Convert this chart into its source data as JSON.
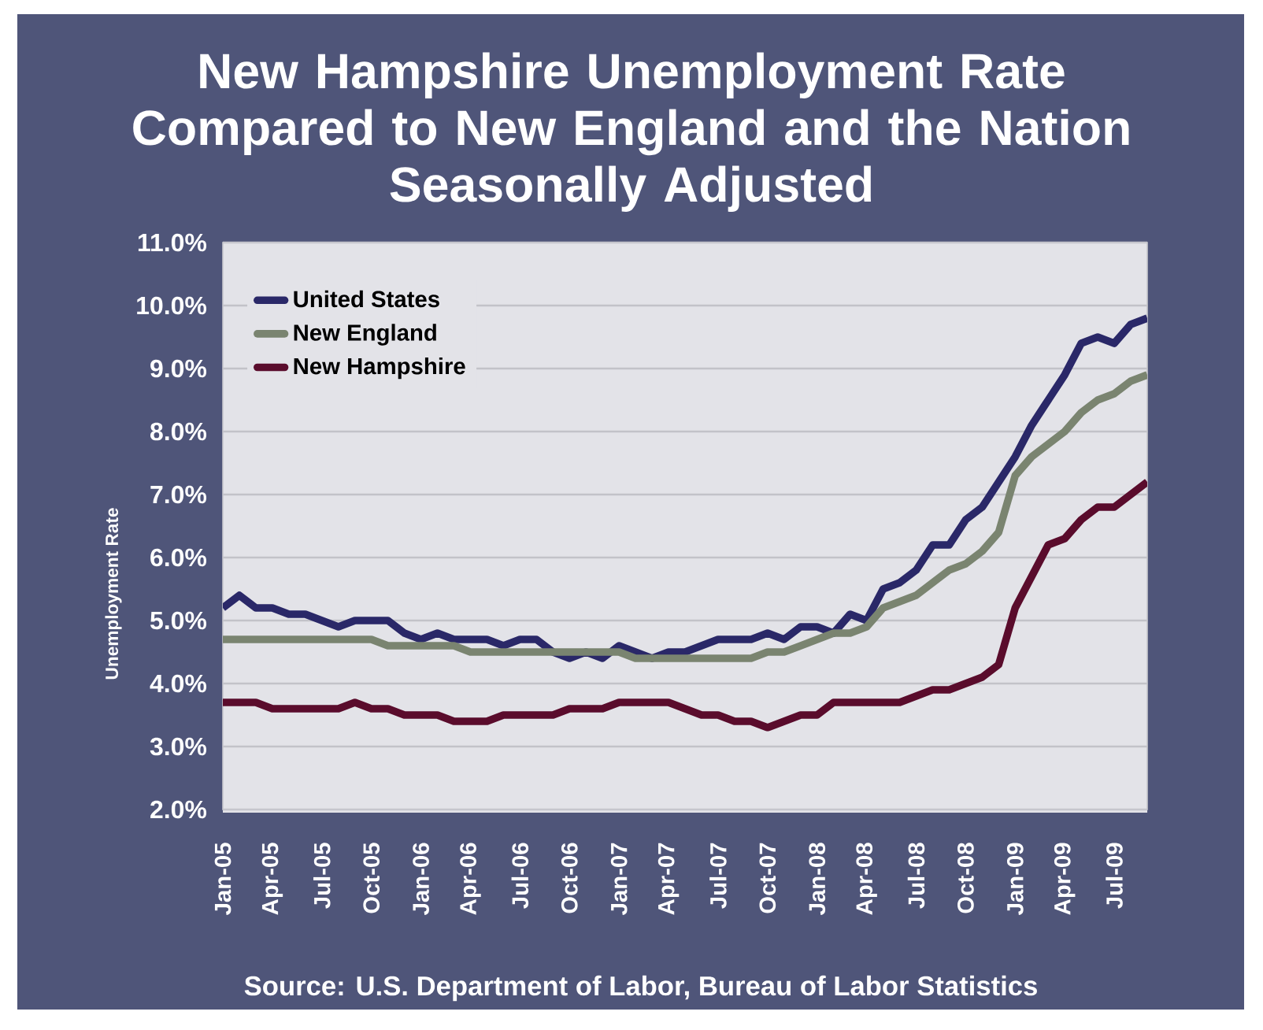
{
  "chart_data": {
    "type": "line",
    "title": "New Hampshire Unemployment Rate Compared to New England and the Nation",
    "subtitle": "Seasonally Adjusted",
    "ylabel": "Unemployment Rate",
    "categories": [
      "Jan-05",
      null,
      null,
      "Apr-05",
      null,
      null,
      "Jul-05",
      null,
      null,
      "Oct-05",
      null,
      null,
      "Jan-06",
      null,
      null,
      "Apr-06",
      null,
      null,
      "Jul-06",
      null,
      null,
      "Oct-06",
      null,
      null,
      "Jan-07",
      null,
      null,
      "Apr-07",
      null,
      null,
      "Jul-07",
      null,
      null,
      "Oct-07",
      null,
      null,
      "Jan-08",
      null,
      null,
      "Apr-08",
      null,
      null,
      "Jul-08",
      null,
      null,
      "Oct-08",
      null,
      null,
      "Jan-09",
      null,
      null,
      "Apr-09",
      null,
      null,
      "Jul-09",
      null,
      null
    ],
    "series": [
      {
        "name": "United States",
        "color": "#2a2868",
        "values": [
          5.2,
          5.4,
          5.2,
          5.2,
          5.1,
          5.1,
          5.0,
          4.9,
          5.0,
          5.0,
          5.0,
          4.8,
          4.7,
          4.8,
          4.7,
          4.7,
          4.7,
          4.6,
          4.7,
          4.7,
          4.5,
          4.4,
          4.5,
          4.4,
          4.6,
          4.5,
          4.4,
          4.5,
          4.5,
          4.6,
          4.7,
          4.7,
          4.7,
          4.8,
          4.7,
          4.9,
          4.9,
          4.8,
          5.1,
          5.0,
          5.5,
          5.6,
          5.8,
          6.2,
          6.2,
          6.6,
          6.8,
          7.2,
          7.6,
          8.1,
          8.5,
          8.9,
          9.4,
          9.5,
          9.4,
          9.7,
          9.8
        ]
      },
      {
        "name": "New England",
        "color": "#7a8470",
        "values": [
          4.7,
          4.7,
          4.7,
          4.7,
          4.7,
          4.7,
          4.7,
          4.7,
          4.7,
          4.7,
          4.6,
          4.6,
          4.6,
          4.6,
          4.6,
          4.5,
          4.5,
          4.5,
          4.5,
          4.5,
          4.5,
          4.5,
          4.5,
          4.5,
          4.5,
          4.4,
          4.4,
          4.4,
          4.4,
          4.4,
          4.4,
          4.4,
          4.4,
          4.5,
          4.5,
          4.6,
          4.7,
          4.8,
          4.8,
          4.9,
          5.2,
          5.3,
          5.4,
          5.6,
          5.8,
          5.9,
          6.1,
          6.4,
          7.3,
          7.6,
          7.8,
          8.0,
          8.3,
          8.5,
          8.6,
          8.8,
          8.9
        ]
      },
      {
        "name": "New Hampshire",
        "color": "#5a0c2c",
        "values": [
          3.7,
          3.7,
          3.7,
          3.6,
          3.6,
          3.6,
          3.6,
          3.6,
          3.7,
          3.6,
          3.6,
          3.5,
          3.5,
          3.5,
          3.4,
          3.4,
          3.4,
          3.5,
          3.5,
          3.5,
          3.5,
          3.6,
          3.6,
          3.6,
          3.7,
          3.7,
          3.7,
          3.7,
          3.6,
          3.5,
          3.5,
          3.4,
          3.4,
          3.3,
          3.4,
          3.5,
          3.5,
          3.7,
          3.7,
          3.7,
          3.7,
          3.7,
          3.8,
          3.9,
          3.9,
          4.0,
          4.1,
          4.3,
          5.2,
          5.7,
          6.2,
          6.3,
          6.6,
          6.8,
          6.8,
          7.0,
          7.2
        ]
      }
    ],
    "ylim": [
      2,
      11
    ],
    "yticks": [
      {
        "value": 2,
        "label": "2.0%"
      },
      {
        "value": 3,
        "label": "3.0%"
      },
      {
        "value": 4,
        "label": "4.0%"
      },
      {
        "value": 5,
        "label": "5.0%"
      },
      {
        "value": 6,
        "label": "6.0%"
      },
      {
        "value": 7,
        "label": "7.0%"
      },
      {
        "value": 8,
        "label": "8.0%"
      },
      {
        "value": 9,
        "label": "9.0%"
      },
      {
        "value": 10,
        "label": "10.0%"
      },
      {
        "value": 11,
        "label": "11.0%"
      }
    ],
    "grid": "y",
    "legend": "top left",
    "annotations": [
      "Source: U.S. Department of Labor, Bureau of Labor Statistics"
    ]
  }
}
